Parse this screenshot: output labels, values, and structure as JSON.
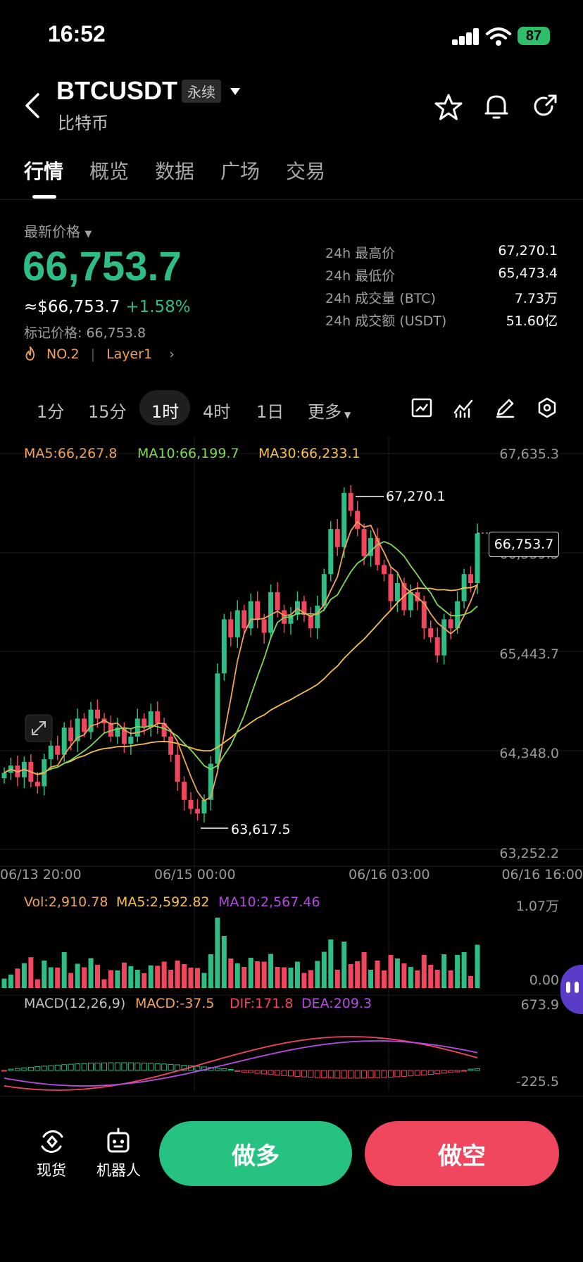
{
  "status_bar": {
    "time": "16:52",
    "battery": "87"
  },
  "header": {
    "symbol": "BTCUSDT",
    "badge": "永续",
    "subtitle": "比特币"
  },
  "tabs": [
    {
      "label": "行情",
      "active": true
    },
    {
      "label": "概览"
    },
    {
      "label": "数据"
    },
    {
      "label": "广场"
    },
    {
      "label": "交易"
    }
  ],
  "price": {
    "label": "最新价格",
    "last": "66,753.7",
    "usd": "≈$66,753.7",
    "change": "+1.58%",
    "mark": "标记价格: 66,753.8",
    "rank": "NO.2",
    "sector": "Layer1"
  },
  "stats": [
    {
      "label": "24h 最高价",
      "value": "67,270.1"
    },
    {
      "label": "24h 最低价",
      "value": "65,473.4"
    },
    {
      "label": "24h 成交量 (BTC)",
      "value": "7.73万"
    },
    {
      "label": "24h 成交额 (USDT)",
      "value": "51.60亿"
    }
  ],
  "intervals": [
    "1分",
    "15分",
    "1时",
    "4时",
    "1日",
    "更多"
  ],
  "active_interval": "1时",
  "colors": {
    "up": "#2ebd85",
    "down": "#f0475f",
    "ma5": "#f0a25a",
    "ma10": "#7ed957",
    "ma30": "#f7c04a",
    "macd_dea": "#b44ce0"
  },
  "chart_data": {
    "type": "candlestick",
    "ma_labels": [
      "MA5:66,267.8",
      "MA10:66,199.7",
      "MA30:66,233.1"
    ],
    "y_ticks": [
      "67,635.3",
      "66,539.5",
      "65,443.7",
      "64,348.0",
      "63,252.2"
    ],
    "x_ticks": [
      "06/13 20:00",
      "06/15 00:00",
      "06/16 03:00",
      "06/16 16:00"
    ],
    "ylim": [
      63252.2,
      67635.3
    ],
    "high_marker": "67,270.1",
    "low_marker": "63,617.5",
    "current_price": "66,753.7",
    "closes": [
      64100,
      64180,
      64050,
      64220,
      64000,
      63950,
      64250,
      64400,
      64300,
      64600,
      64450,
      64700,
      64550,
      64800,
      64700,
      64650,
      64500,
      64600,
      64420,
      64500,
      64700,
      64600,
      64780,
      64650,
      64500,
      64300,
      64000,
      63800,
      63700,
      63650,
      63800,
      64200,
      65200,
      65800,
      65600,
      65900,
      65700,
      66000,
      65800,
      65650,
      66100,
      65900,
      65750,
      65850,
      66000,
      65850,
      65700,
      65950,
      66300,
      66800,
      66600,
      67200,
      67000,
      66800,
      66500,
      66700,
      66400,
      66300,
      66000,
      66200,
      65900,
      66100,
      66000,
      65700,
      65600,
      65400,
      65800,
      65700,
      66000,
      66300,
      66200,
      66750
    ],
    "vol_labels": [
      "Vol:2,910.78",
      "MA5:2,592.82",
      "MA10:2,567.46"
    ],
    "vol_ticks": [
      "1.07万",
      "0.00"
    ],
    "macd_labels": [
      "MACD(12,26,9)",
      "MACD:-37.5",
      "DIF:171.8",
      "DEA:209.3"
    ],
    "macd_ticks": [
      "673.9",
      "-225.5"
    ]
  },
  "bottom_bar": {
    "spot_label": "现货",
    "bot_label": "机器人",
    "long_label": "做多",
    "short_label": "做空"
  }
}
